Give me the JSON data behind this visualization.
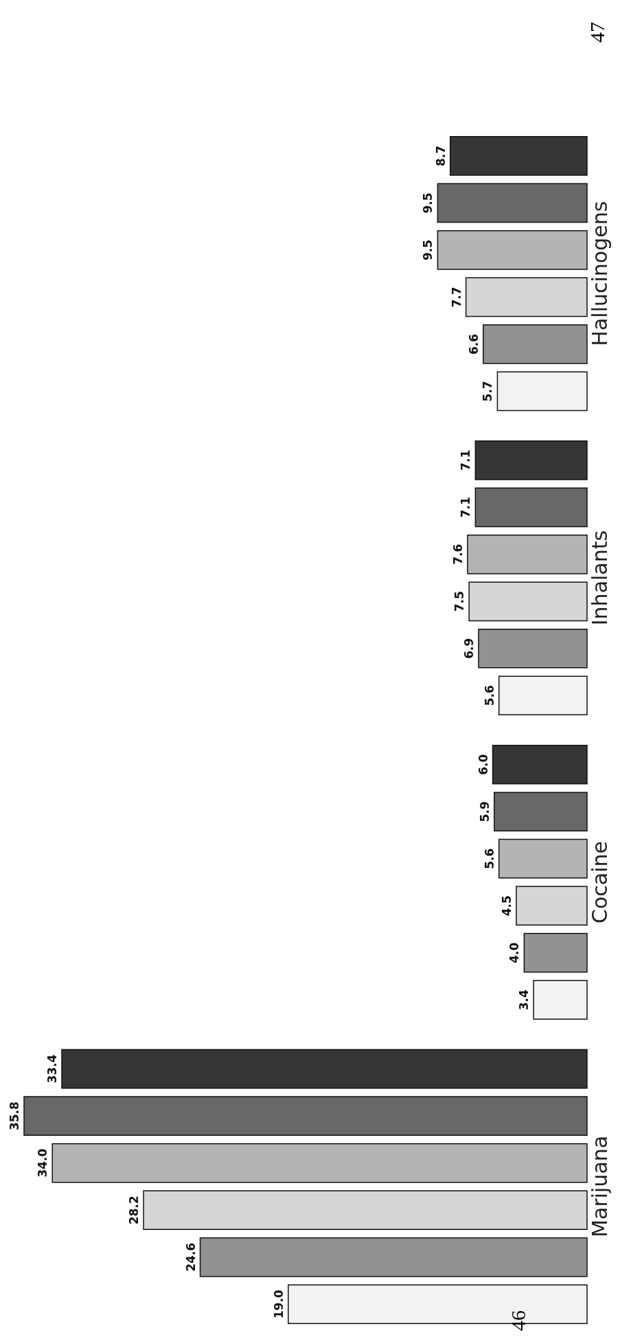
{
  "chart_data": {
    "type": "bar",
    "orientation": "horizontal",
    "categories": [
      "Hallucinogens",
      "Inhalants",
      "Cocaine",
      "Marijuana"
    ],
    "series": [
      {
        "color": "#363636",
        "values": [
          8.7,
          7.1,
          6.0,
          33.4
        ],
        "value_labels": [
          "8.7",
          "7.1",
          "6.0",
          "33.4"
        ]
      },
      {
        "color": "#686868",
        "values": [
          9.5,
          7.1,
          5.9,
          35.8
        ],
        "value_labels": [
          "9.5",
          "7.1",
          "5.9",
          "35.8"
        ]
      },
      {
        "color": "#b4b4b4",
        "values": [
          9.5,
          7.6,
          5.6,
          34.0
        ],
        "value_labels": [
          "9.5",
          "7.6",
          "5.6",
          "34.0"
        ]
      },
      {
        "color": "#d6d6d6",
        "values": [
          7.7,
          7.5,
          4.5,
          28.2
        ],
        "value_labels": [
          "7.7",
          "7.5",
          "4.5",
          "28.2"
        ]
      },
      {
        "color": "#929292",
        "values": [
          6.6,
          6.9,
          4.0,
          24.6
        ],
        "value_labels": [
          "6.6",
          "6.9",
          "4.0",
          "24.6"
        ]
      },
      {
        "color": "#f2f2f2",
        "values": [
          5.7,
          5.6,
          3.4,
          19.0
        ],
        "value_labels": [
          "5.7",
          "5.6",
          "3.4",
          "19.0"
        ]
      }
    ],
    "annotations": [
      "46",
      "47"
    ]
  }
}
